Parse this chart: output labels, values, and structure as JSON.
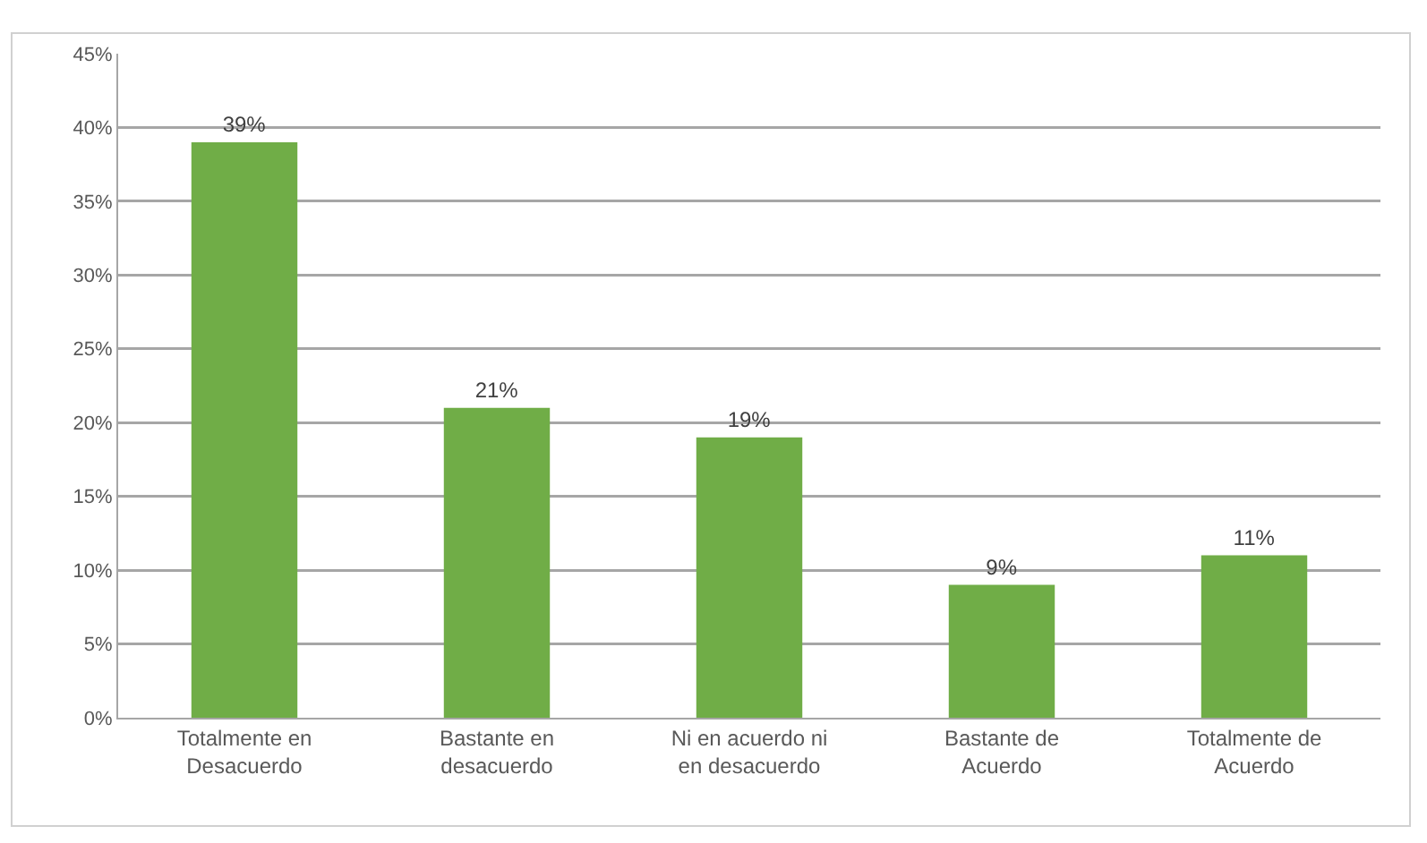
{
  "chart_data": {
    "type": "bar",
    "categories": [
      "Totalmente en Desacuerdo",
      "Bastante en desacuerdo",
      "Ni en acuerdo ni en desacuerdo",
      "Bastante de Acuerdo",
      "Totalmente de Acuerdo"
    ],
    "values": [
      39,
      21,
      19,
      9,
      11
    ],
    "color": "#70ad47",
    "ylim": [
      0,
      45
    ],
    "yticks": [
      {
        "value": 0,
        "label": "0%"
      },
      {
        "value": 5,
        "label": "5%"
      },
      {
        "value": 10,
        "label": "10%"
      },
      {
        "value": 15,
        "label": "15%"
      },
      {
        "value": 20,
        "label": "20%"
      },
      {
        "value": 25,
        "label": "25%"
      },
      {
        "value": 30,
        "label": "30%"
      },
      {
        "value": 35,
        "label": "35%"
      },
      {
        "value": 40,
        "label": "40%"
      },
      {
        "value": 45,
        "label": "45%"
      }
    ],
    "value_labels": [
      "39%",
      "21%",
      "19%",
      "9%",
      "11%"
    ],
    "grid": "y",
    "legend": false
  }
}
